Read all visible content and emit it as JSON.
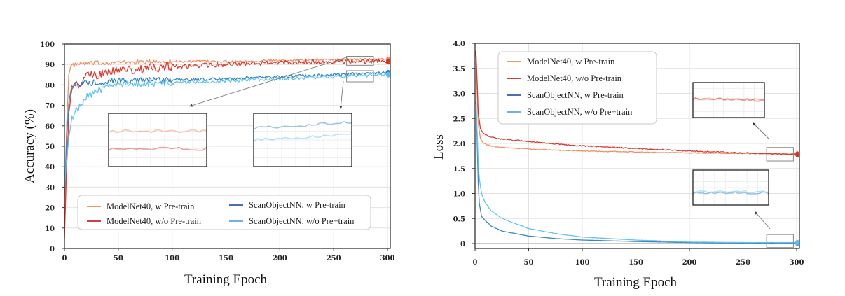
{
  "colors": {
    "modelnet_w": "#f08a5d",
    "modelnet_wo": "#d6342a",
    "scan_w": "#2f7fc1",
    "scan_wo": "#5bc0f0",
    "legend_modelnet_w": "#f0955e",
    "legend_modelnet_wo": "#d04040",
    "legend_scan_w": "#4a6fb0",
    "legend_scan_wo": "#6fb0e8"
  },
  "chart_data": [
    {
      "type": "line",
      "title": "",
      "xlabel": "Training Epoch",
      "ylabel": "Accuracy (%)",
      "xlim": [
        0,
        300
      ],
      "ylim": [
        0,
        100
      ],
      "xticks": [
        "0",
        "50",
        "100",
        "150",
        "200",
        "250",
        "300"
      ],
      "yticks": [
        "0",
        "10",
        "20",
        "30",
        "40",
        "50",
        "60",
        "70",
        "80",
        "90",
        "100"
      ],
      "grid": true,
      "legend_position": "lower-center",
      "legend": [
        {
          "label": "ModelNet40,  w Pre-train",
          "series": "modelnet_w"
        },
        {
          "label": "ScanObjectNN,  w Pre-train",
          "series": "scan_w"
        },
        {
          "label": "ModelNet40,  w/o Pre-train",
          "series": "modelnet_wo"
        },
        {
          "label": "ScanObjectNN,  w/o Pre−train",
          "series": "scan_wo"
        }
      ],
      "series": [
        {
          "name": "ModelNet40, w Pre-train",
          "key": "modelnet_w",
          "x": [
            0,
            2,
            4,
            6,
            10,
            20,
            50,
            100,
            150,
            200,
            250,
            300
          ],
          "y": [
            5,
            60,
            85,
            89,
            90,
            90.5,
            91,
            91.5,
            91.5,
            92,
            92.5,
            92.5
          ]
        },
        {
          "name": "ModelNet40, w/o Pre-train",
          "key": "modelnet_wo",
          "x": [
            0,
            2,
            4,
            6,
            8,
            10,
            15,
            20,
            30,
            50,
            75,
            100,
            150,
            200,
            250,
            300
          ],
          "y": [
            5,
            40,
            65,
            75,
            78,
            80,
            81,
            84,
            85,
            87,
            88,
            89,
            90,
            91,
            91.5,
            91.5
          ]
        },
        {
          "name": "ScanObjectNN, w Pre-train",
          "key": "scan_w",
          "x": [
            0,
            2,
            4,
            6,
            10,
            20,
            50,
            100,
            150,
            200,
            250,
            300
          ],
          "y": [
            25,
            55,
            72,
            78,
            80,
            81,
            82,
            82.5,
            83,
            84,
            85,
            86
          ]
        },
        {
          "name": "ScanObjectNN, w/o Pre-train",
          "key": "scan_wo",
          "x": [
            0,
            2,
            4,
            6,
            10,
            15,
            20,
            30,
            50,
            100,
            150,
            200,
            250,
            300
          ],
          "y": [
            30,
            45,
            55,
            62,
            67,
            70,
            74,
            77,
            80,
            81,
            82,
            83,
            84,
            85
          ]
        }
      ],
      "zoom_boxes": [
        {
          "target": "modelnet",
          "x_range": [
            262,
            287
          ],
          "y_range": [
            89.5,
            94
          ]
        },
        {
          "target": "scanobjectnn",
          "x_range": [
            262,
            287
          ],
          "y_range": [
            81.5,
            87
          ]
        }
      ]
    },
    {
      "type": "line",
      "title": "",
      "xlabel": "Training Epoch",
      "ylabel": "Loss",
      "xlim": [
        0,
        300
      ],
      "ylim": [
        0,
        4.0
      ],
      "xticks": [
        "0",
        "50",
        "100",
        "150",
        "200",
        "250",
        "300"
      ],
      "yticks": [
        "0",
        "0.5",
        "1.0",
        "1.5",
        "2.0",
        "2.5",
        "3.0",
        "3.5",
        "4.0"
      ],
      "grid": true,
      "legend_position": "upper-left",
      "legend": [
        {
          "label": "ModelNet40,  w Pre-train",
          "series": "modelnet_w"
        },
        {
          "label": "ModelNet40,  w/o Pre-train",
          "series": "modelnet_wo"
        },
        {
          "label": "ScanObjectNN,  w Pre-train",
          "series": "scan_w"
        },
        {
          "label": "ScanObjectNN,  w/o Pre−train",
          "series": "scan_wo"
        }
      ],
      "series": [
        {
          "name": "ModelNet40, w Pre-train",
          "key": "modelnet_w",
          "x": [
            0,
            1,
            2,
            3,
            5,
            8,
            12,
            20,
            40,
            70,
            100,
            150,
            200,
            250,
            300
          ],
          "y": [
            3.85,
            3.7,
            3.0,
            2.4,
            2.1,
            2.0,
            1.97,
            1.93,
            1.9,
            1.87,
            1.85,
            1.83,
            1.81,
            1.8,
            1.79
          ]
        },
        {
          "name": "ModelNet40, w/o Pre-train",
          "key": "modelnet_wo",
          "x": [
            0,
            1,
            2,
            3,
            5,
            8,
            12,
            20,
            40,
            70,
            100,
            150,
            200,
            250,
            300
          ],
          "y": [
            3.85,
            3.75,
            3.2,
            2.6,
            2.3,
            2.2,
            2.15,
            2.1,
            2.06,
            2.0,
            1.95,
            1.9,
            1.85,
            1.81,
            1.78
          ]
        },
        {
          "name": "ScanObjectNN, w Pre-train",
          "key": "scan_w",
          "x": [
            0,
            1,
            2,
            3,
            4,
            6,
            10,
            15,
            25,
            50,
            75,
            100,
            150,
            200,
            250,
            300
          ],
          "y": [
            2.85,
            2.8,
            2.0,
            1.2,
            0.8,
            0.55,
            0.45,
            0.35,
            0.25,
            0.15,
            0.1,
            0.07,
            0.04,
            0.02,
            0.01,
            0.01
          ]
        },
        {
          "name": "ScanObjectNN, w/o Pre-train",
          "key": "scan_wo",
          "x": [
            0,
            1,
            2,
            3,
            4,
            6,
            10,
            15,
            25,
            50,
            75,
            100,
            150,
            200,
            250,
            300
          ],
          "y": [
            2.85,
            2.8,
            2.2,
            1.6,
            1.3,
            1.0,
            0.8,
            0.65,
            0.5,
            0.3,
            0.2,
            0.13,
            0.07,
            0.03,
            0.02,
            0.02
          ]
        }
      ],
      "zoom_boxes": [
        {
          "target": "modelnet",
          "x_range": [
            272,
            297
          ],
          "y_range": [
            1.65,
            1.92
          ]
        },
        {
          "target": "scanobjectnn",
          "x_range": [
            272,
            297
          ],
          "y_range": [
            -0.08,
            0.18
          ]
        }
      ]
    }
  ]
}
